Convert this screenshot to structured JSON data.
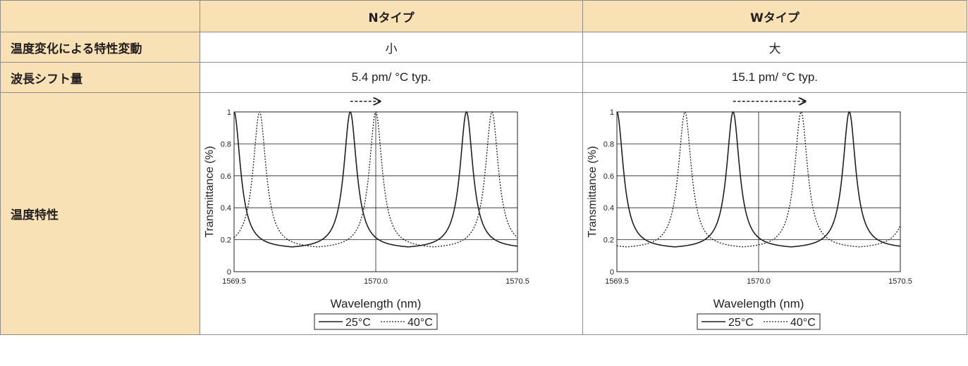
{
  "table": {
    "header": {
      "corner": "",
      "col_n": "Nタイプ",
      "col_w": "Wタイプ"
    },
    "rows": [
      {
        "label": "温度変化による特性変動",
        "n": "小",
        "w": "大"
      },
      {
        "label": "波長シフト量",
        "n": "5.4 pm/ °C typ.",
        "w": "15.1 pm/ °C typ."
      },
      {
        "label": "温度特性"
      }
    ]
  },
  "chart_data": [
    {
      "type": "line",
      "panel": "Nタイプ",
      "xlabel": "Wavelength (nm)",
      "ylabel": "Transmittance (%)",
      "xlim": [
        1569.5,
        1570.5
      ],
      "ylim": [
        0,
        1
      ],
      "xticks": [
        "1569.5",
        "1570.0",
        "1570.5"
      ],
      "yticks": [
        "0",
        "0.2",
        "0.4",
        "0.6",
        "0.8",
        "1"
      ],
      "grid": "horizontal",
      "legend_placement": "bottom",
      "vline_x": 1570.0,
      "series": [
        {
          "name": "25°C",
          "style": "solid",
          "peaks_nm": [
            1569.5,
            1569.91,
            1570.32
          ],
          "fsr_nm": 0.41,
          "min": 0.14,
          "width_nm": 0.055
        },
        {
          "name": "40°C",
          "style": "dotted",
          "peaks_nm": [
            1569.59,
            1570.0,
            1570.41
          ],
          "fsr_nm": 0.41,
          "min": 0.14,
          "width_nm": 0.055
        }
      ],
      "shift_arrow": {
        "from_x": 1569.91,
        "to_x": 1570.0
      }
    },
    {
      "type": "line",
      "panel": "Wタイプ",
      "xlabel": "Wavelength (nm)",
      "ylabel": "Transmittance (%)",
      "xlim": [
        1569.5,
        1570.5
      ],
      "ylim": [
        0,
        1
      ],
      "xticks": [
        "1569.5",
        "1570.0",
        "1570.5"
      ],
      "yticks": [
        "0",
        "0.2",
        "0.4",
        "0.6",
        "0.8",
        "1"
      ],
      "grid": "horizontal",
      "legend_placement": "bottom",
      "vline_x": 1570.0,
      "series": [
        {
          "name": "25°C",
          "style": "solid",
          "peaks_nm": [
            1569.5,
            1569.91,
            1570.32
          ],
          "fsr_nm": 0.41,
          "min": 0.14,
          "width_nm": 0.055
        },
        {
          "name": "40°C",
          "style": "dotted",
          "peaks_nm": [
            1569.74,
            1570.15
          ],
          "fsr_nm": 0.41,
          "min": 0.14,
          "width_nm": 0.055
        }
      ],
      "shift_arrow": {
        "from_x": 1569.91,
        "to_x": 1570.15
      }
    }
  ]
}
